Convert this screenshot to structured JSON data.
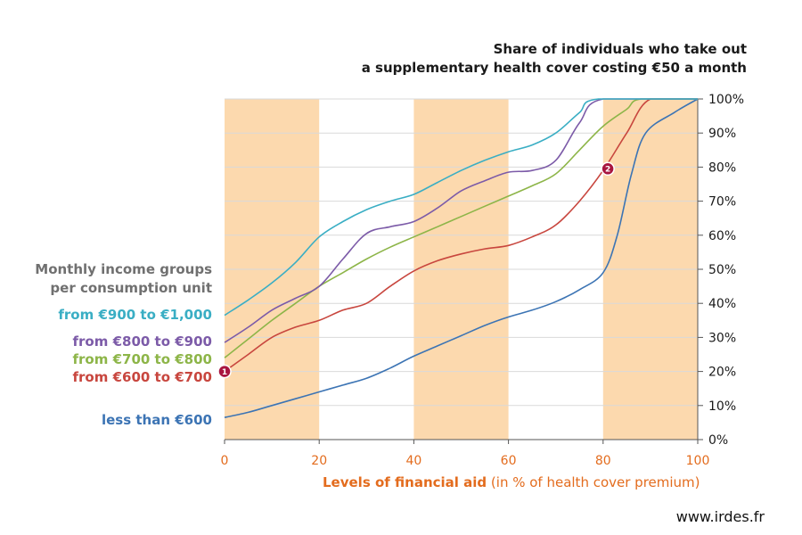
{
  "chart_data": {
    "type": "line",
    "title_line1": "Share of individuals who take out",
    "title_line2": "a supplementary health cover costing €50 a month",
    "xlabel_bold": "Levels of financial aid",
    "xlabel_rest": " (in % of health cover premium)",
    "legend_title_line1": "Monthly income groups",
    "legend_title_line2": "per consumption unit",
    "xlim": [
      0,
      100
    ],
    "ylim": [
      0,
      100
    ],
    "x_ticks": [
      "0",
      "20",
      "40",
      "60",
      "80",
      "100"
    ],
    "y_ticks": [
      "0%",
      "10%",
      "20%",
      "30%",
      "40%",
      "50%",
      "60%",
      "70%",
      "80%",
      "90%",
      "100%"
    ],
    "shaded_ranges": [
      [
        0,
        20
      ],
      [
        40,
        60
      ],
      [
        80,
        100
      ]
    ],
    "shade_color": "#fcd9ae",
    "grid": true,
    "legend_position": "left",
    "series": [
      {
        "name": "from €900 to €1,000",
        "color": "#3aaec4",
        "points": [
          [
            0,
            36.5
          ],
          [
            5,
            41
          ],
          [
            10,
            46
          ],
          [
            15,
            52
          ],
          [
            20,
            59.5
          ],
          [
            25,
            64
          ],
          [
            30,
            67.5
          ],
          [
            35,
            70
          ],
          [
            40,
            72
          ],
          [
            45,
            75.5
          ],
          [
            50,
            79
          ],
          [
            55,
            82
          ],
          [
            60,
            84.5
          ],
          [
            65,
            86.5
          ],
          [
            70,
            90
          ],
          [
            75,
            96
          ],
          [
            79,
            100
          ],
          [
            100,
            100
          ]
        ]
      },
      {
        "name": "from €800 to €900",
        "color": "#7c5ba8",
        "points": [
          [
            0,
            28.5
          ],
          [
            5,
            33
          ],
          [
            10,
            38
          ],
          [
            15,
            41.5
          ],
          [
            20,
            45
          ],
          [
            25,
            53
          ],
          [
            30,
            60.5
          ],
          [
            35,
            62.5
          ],
          [
            40,
            64
          ],
          [
            45,
            68
          ],
          [
            50,
            73
          ],
          [
            55,
            76
          ],
          [
            60,
            78.5
          ],
          [
            65,
            79
          ],
          [
            70,
            82
          ],
          [
            75,
            93
          ],
          [
            80,
            100
          ],
          [
            100,
            100
          ]
        ]
      },
      {
        "name": "from €700 to €800",
        "color": "#8db548",
        "points": [
          [
            0,
            24
          ],
          [
            5,
            29.5
          ],
          [
            10,
            35
          ],
          [
            15,
            40
          ],
          [
            20,
            45
          ],
          [
            25,
            49
          ],
          [
            30,
            53
          ],
          [
            35,
            56.5
          ],
          [
            40,
            59.5
          ],
          [
            45,
            62.5
          ],
          [
            50,
            65.5
          ],
          [
            55,
            68.5
          ],
          [
            60,
            71.5
          ],
          [
            65,
            74.5
          ],
          [
            70,
            78
          ],
          [
            75,
            85
          ],
          [
            80,
            92
          ],
          [
            85,
            97
          ],
          [
            88,
            100
          ],
          [
            100,
            100
          ]
        ]
      },
      {
        "name": "from €600 to €700",
        "color": "#c8463e",
        "points": [
          [
            0,
            20
          ],
          [
            5,
            25
          ],
          [
            10,
            30
          ],
          [
            15,
            33
          ],
          [
            20,
            35
          ],
          [
            25,
            38
          ],
          [
            30,
            40
          ],
          [
            35,
            45
          ],
          [
            40,
            49.5
          ],
          [
            45,
            52.5
          ],
          [
            50,
            54.5
          ],
          [
            55,
            56
          ],
          [
            60,
            57
          ],
          [
            65,
            59.5
          ],
          [
            70,
            63
          ],
          [
            75,
            70
          ],
          [
            80,
            79
          ],
          [
            85,
            90
          ],
          [
            90,
            100
          ],
          [
            100,
            100
          ]
        ]
      },
      {
        "name": "less than €600",
        "color": "#3c74b4",
        "points": [
          [
            0,
            6.5
          ],
          [
            5,
            8
          ],
          [
            10,
            10
          ],
          [
            15,
            12
          ],
          [
            20,
            14
          ],
          [
            25,
            16
          ],
          [
            30,
            18
          ],
          [
            35,
            21
          ],
          [
            40,
            24.5
          ],
          [
            45,
            27.5
          ],
          [
            50,
            30.5
          ],
          [
            55,
            33.5
          ],
          [
            60,
            36
          ],
          [
            65,
            38
          ],
          [
            70,
            40.5
          ],
          [
            75,
            44
          ],
          [
            80,
            49
          ],
          [
            83,
            60
          ],
          [
            86,
            78
          ],
          [
            89,
            90
          ],
          [
            95,
            96
          ],
          [
            100,
            100
          ]
        ]
      }
    ],
    "markers": [
      {
        "label": "1",
        "x": 0,
        "y": 20,
        "color": "#a8153f"
      },
      {
        "label": "2",
        "x": 81,
        "y": 79.5,
        "color": "#a8153f"
      }
    ]
  },
  "source": "www.irdes.fr"
}
